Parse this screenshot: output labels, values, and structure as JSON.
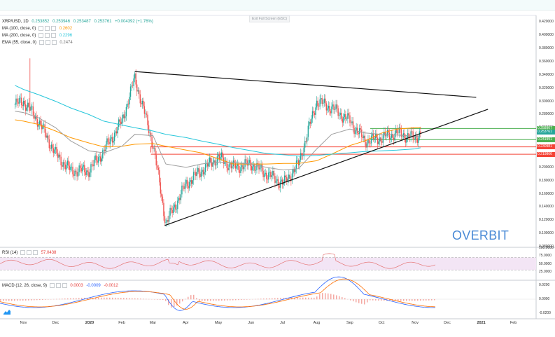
{
  "exit_fullscreen": "Exit Full Screen (ESC)",
  "symbol": {
    "name": "XRP/USD, 1D",
    "open": "0.253852",
    "high": "0.253946",
    "low": "0.253487",
    "close": "0.253761",
    "change": "+0.004392 (+1.76%)"
  },
  "indicators": [
    {
      "label": "MA (100, close, 0)",
      "value": "0.2602",
      "color": "#ff9800"
    },
    {
      "label": "MA (200, close, 0)",
      "value": "0.2296",
      "color": "#26c6da"
    },
    {
      "label": "EMA (55, close, 0)",
      "value": "0.2474",
      "color": "#9e9e9e"
    }
  ],
  "rsi": {
    "label": "RSI (14)",
    "value": "57.0438",
    "color": "#e53935",
    "ticks": [
      "100.0000",
      "75.0000",
      "50.0000",
      "25.0000"
    ],
    "levels": [
      70,
      30
    ]
  },
  "macd": {
    "label": "MACD (12, 26, close, 9)",
    "values": [
      "0.0003",
      "-0.0009",
      "-0.0012"
    ],
    "ticks": [
      "0.0200",
      "0.0000",
      "-0.0200"
    ]
  },
  "watermark": "OVERBIT",
  "price_axis": [
    "0.420000",
    "0.400000",
    "0.380000",
    "0.360000",
    "0.340000",
    "0.320000",
    "0.300000",
    "0.280000",
    "0.260000",
    "0.240000",
    "0.220000",
    "0.200000",
    "0.180000",
    "0.160000",
    "0.140000",
    "0.120000",
    "0.100000",
    "0.080000"
  ],
  "price_tags": [
    {
      "text": "0.258907",
      "value": 0.258907,
      "color": "#4caf50"
    },
    {
      "text": "0.253761",
      "value": 0.253761,
      "color": "#26a69a"
    },
    {
      "text": "0.241991",
      "value": 0.241991,
      "color": "#4caf50"
    },
    {
      "text": "0.230981",
      "value": 0.230981,
      "color": "#f44336"
    },
    {
      "text": "0.219866",
      "value": 0.219866,
      "color": "#f44336"
    }
  ],
  "time_axis": [
    "Nov",
    "Dec",
    "2020",
    "Feb",
    "Mar",
    "Apr",
    "May",
    "Jun",
    "Jul",
    "Aug",
    "Sep",
    "Oct",
    "Nov",
    "Dec",
    "2021",
    "Feb"
  ],
  "chart_data": {
    "type": "line",
    "title": "XRP/USD, 1D",
    "ylim": [
      0.08,
      0.43
    ],
    "x": [
      "2019-10-24",
      "2019-11-01",
      "2019-11-15",
      "2019-12-01",
      "2019-12-15",
      "2020-01-01",
      "2020-01-15",
      "2020-02-01",
      "2020-02-13",
      "2020-03-01",
      "2020-03-13",
      "2020-04-01",
      "2020-04-15",
      "2020-05-01",
      "2020-05-15",
      "2020-06-01",
      "2020-06-15",
      "2020-07-01",
      "2020-07-15",
      "2020-08-01",
      "2020-08-15",
      "2020-09-01",
      "2020-09-15",
      "2020-10-01",
      "2020-10-15",
      "2020-11-01",
      "2020-11-06"
    ],
    "series": [
      {
        "name": "XRP/USD",
        "color": "#26a69a",
        "values": [
          0.295,
          0.3,
          0.27,
          0.22,
          0.195,
          0.195,
          0.225,
          0.27,
          0.335,
          0.235,
          0.115,
          0.175,
          0.195,
          0.215,
          0.2,
          0.205,
          0.19,
          0.175,
          0.205,
          0.3,
          0.29,
          0.27,
          0.24,
          0.245,
          0.252,
          0.244,
          0.2538
        ]
      },
      {
        "name": "MA (100, close, 0)",
        "color": "#ff9800",
        "values": [
          0.272,
          0.27,
          0.265,
          0.255,
          0.245,
          0.237,
          0.231,
          0.232,
          0.235,
          0.236,
          0.232,
          0.226,
          0.222,
          0.213,
          0.205,
          0.205,
          0.205,
          0.206,
          0.206,
          0.21,
          0.22,
          0.233,
          0.24,
          0.252,
          0.258,
          0.26,
          0.2602
        ]
      },
      {
        "name": "MA (200, close, 0)",
        "color": "#26c6da",
        "values": [
          0.324,
          0.318,
          0.31,
          0.3,
          0.29,
          0.28,
          0.27,
          0.264,
          0.26,
          0.255,
          0.25,
          0.245,
          0.24,
          0.235,
          0.23,
          0.225,
          0.221,
          0.219,
          0.217,
          0.218,
          0.22,
          0.222,
          0.224,
          0.225,
          0.226,
          0.228,
          0.2296
        ]
      },
      {
        "name": "EMA (55, close, 0)",
        "color": "#9e9e9e",
        "values": [
          0.285,
          0.283,
          0.275,
          0.26,
          0.24,
          0.225,
          0.222,
          0.232,
          0.25,
          0.248,
          0.205,
          0.2,
          0.205,
          0.208,
          0.207,
          0.205,
          0.2,
          0.196,
          0.198,
          0.228,
          0.25,
          0.258,
          0.252,
          0.25,
          0.249,
          0.247,
          0.2474
        ]
      }
    ],
    "trendlines": [
      {
        "from": [
          "2020-02-13",
          0.345
        ],
        "to": [
          "2020-12-28",
          0.306
        ],
        "color": "#111111"
      },
      {
        "from": [
          "2020-03-12",
          0.112
        ],
        "to": [
          "2021-01-08",
          0.288
        ],
        "color": "#111111"
      }
    ],
    "levels": [
      {
        "value": 0.258907,
        "color": "#4caf50"
      },
      {
        "value": 0.241991,
        "color": "#4caf50"
      },
      {
        "value": 0.230981,
        "color": "#f44336"
      },
      {
        "value": 0.219866,
        "color": "#f44336"
      }
    ]
  }
}
